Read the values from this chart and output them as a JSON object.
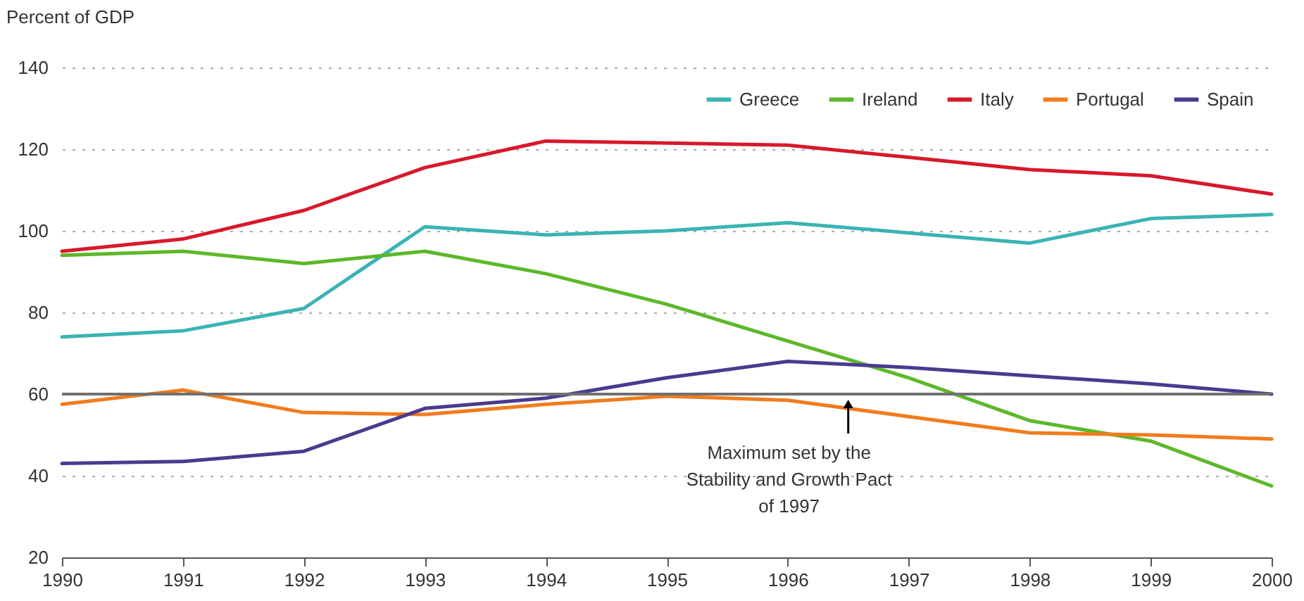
{
  "chart_data": {
    "type": "line",
    "ylabel": "Percent of GDP",
    "x": [
      1990,
      1991,
      1992,
      1993,
      1994,
      1995,
      1996,
      1997,
      1998,
      1999,
      2000
    ],
    "xlim": [
      1990,
      2000
    ],
    "xticks": [
      1990,
      1991,
      1992,
      1993,
      1994,
      1995,
      1996,
      1997,
      1998,
      1999,
      2000
    ],
    "ylim": [
      20,
      140
    ],
    "yticks": [
      20,
      40,
      60,
      80,
      100,
      120,
      140
    ],
    "series": [
      {
        "name": "Greece",
        "color": "#3bb3b3",
        "values": [
          74,
          75.5,
          81,
          101,
          99,
          100,
          102,
          99.5,
          97,
          103,
          104
        ]
      },
      {
        "name": "Ireland",
        "color": "#5cb82a",
        "values": [
          94,
          95,
          92,
          95,
          89.5,
          82,
          73,
          64,
          53.5,
          48.5,
          37.5
        ]
      },
      {
        "name": "Italy",
        "color": "#d7192a",
        "values": [
          95,
          98,
          105,
          115.5,
          122,
          121.5,
          121,
          118,
          115,
          113.5,
          109
        ]
      },
      {
        "name": "Portugal",
        "color": "#f07c1e",
        "values": [
          57.5,
          61,
          55.5,
          55,
          57.5,
          59.5,
          58.5,
          54.5,
          50.5,
          50,
          49
        ]
      },
      {
        "name": "Spain",
        "color": "#4b3a8f",
        "values": [
          43,
          43.5,
          46,
          56.5,
          59,
          64,
          68,
          66.5,
          64.5,
          62.5,
          60
        ]
      }
    ],
    "ref_lines": [
      {
        "axis": "y",
        "value": 60,
        "color": "#707070"
      }
    ],
    "annotations": [
      {
        "text": "Maximum set by the\nStability and Growth Pact\nof 1997",
        "x": 1996.5,
        "y": 60
      }
    ],
    "grid": "y",
    "legend": "top right",
    "marker": "none",
    "line_style": "solid"
  }
}
